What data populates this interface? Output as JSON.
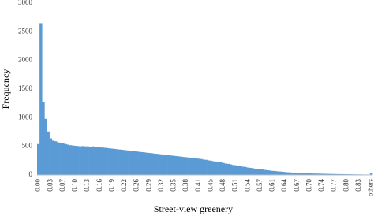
{
  "chart_data": {
    "type": "bar",
    "x_label": "Street-view greenery",
    "y_label": "Frequency",
    "color": "#5b9bd5",
    "categories": [
      "0.00",
      null,
      null,
      null,
      null,
      "0.03",
      null,
      null,
      null,
      null,
      "0.07",
      null,
      null,
      null,
      null,
      "0.10",
      null,
      null,
      null,
      null,
      "0.13",
      null,
      null,
      null,
      null,
      "0.16",
      null,
      null,
      null,
      null,
      "0.19",
      null,
      null,
      null,
      null,
      "0.22",
      null,
      null,
      null,
      null,
      "0.26",
      null,
      null,
      null,
      null,
      "0.29",
      null,
      null,
      null,
      null,
      "0.32",
      null,
      null,
      null,
      null,
      "0.35",
      null,
      null,
      null,
      null,
      "0.38",
      null,
      null,
      null,
      null,
      "0.41",
      null,
      null,
      null,
      null,
      "0.45",
      null,
      null,
      null,
      null,
      "0.48",
      null,
      null,
      null,
      null,
      "0.51",
      null,
      null,
      null,
      null,
      "0.54",
      null,
      null,
      null,
      null,
      "0.57",
      null,
      null,
      null,
      null,
      "0.61",
      null,
      null,
      null,
      null,
      "0.64",
      null,
      null,
      null,
      null,
      "0.67",
      null,
      null,
      null,
      null,
      "0.70",
      null,
      null,
      null,
      null,
      "0.74",
      null,
      null,
      null,
      null,
      "0.77",
      null,
      null,
      null,
      null,
      "0.80",
      null,
      null,
      null,
      null,
      "0.83",
      null,
      null,
      null,
      null,
      "others"
    ],
    "values": [
      540,
      2650,
      1270,
      980,
      760,
      640,
      600,
      590,
      570,
      560,
      550,
      540,
      530,
      520,
      515,
      510,
      505,
      500,
      505,
      500,
      500,
      495,
      500,
      490,
      485,
      490,
      480,
      475,
      470,
      465,
      460,
      455,
      450,
      445,
      440,
      435,
      430,
      425,
      420,
      415,
      410,
      405,
      400,
      395,
      390,
      385,
      380,
      375,
      370,
      365,
      360,
      355,
      350,
      345,
      340,
      335,
      330,
      325,
      320,
      315,
      310,
      305,
      300,
      295,
      290,
      285,
      280,
      270,
      265,
      255,
      250,
      240,
      235,
      225,
      220,
      210,
      200,
      195,
      185,
      175,
      170,
      160,
      155,
      145,
      140,
      130,
      125,
      118,
      110,
      105,
      100,
      95,
      88,
      82,
      78,
      72,
      68,
      64,
      60,
      56,
      52,
      48,
      45,
      42,
      40,
      38,
      35,
      33,
      31,
      29,
      28,
      26,
      25,
      24,
      23,
      22,
      21,
      20,
      19,
      18,
      17,
      16,
      15,
      15,
      14,
      13,
      12,
      12,
      11,
      10,
      10,
      9,
      8,
      8,
      7,
      30
    ],
    "ylim": [
      0,
      3000
    ],
    "yticks": [
      0,
      500,
      1000,
      1500,
      2000,
      2500,
      3000
    ]
  }
}
